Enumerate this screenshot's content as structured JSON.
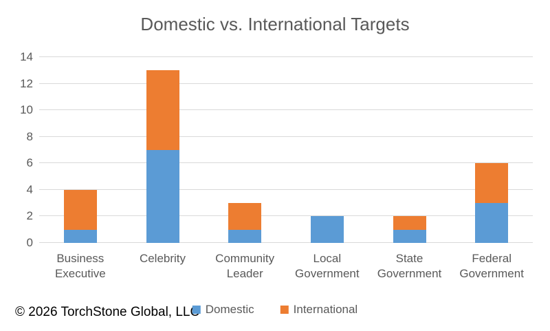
{
  "title": "Domestic vs. International Targets",
  "footer": {
    "copyright": "© 2026 TorchStone Global, LLC"
  },
  "legend": [
    {
      "label": "Domestic",
      "color": "#5B9BD5"
    },
    {
      "label": "International",
      "color": "#ED7D31"
    }
  ],
  "colors": {
    "domestic": "#5B9BD5",
    "international": "#ED7D31",
    "axis_text": "#595959",
    "gridline": "#D9D9D9",
    "footer_text": "#000000"
  },
  "chart_data": {
    "type": "bar",
    "stacked": true,
    "title": "Domestic vs. International Targets",
    "categories": [
      "Business Executive",
      "Celebrity",
      "Community Leader",
      "Local Government",
      "State Government",
      "Federal Government"
    ],
    "series": [
      {
        "name": "Domestic",
        "color": "#5B9BD5",
        "values": [
          1,
          7,
          1,
          2,
          1,
          3
        ]
      },
      {
        "name": "International",
        "color": "#ED7D31",
        "values": [
          3,
          6,
          2,
          0,
          1,
          3
        ]
      }
    ],
    "xlabel": "",
    "ylabel": "",
    "ylim": [
      0,
      14
    ],
    "ytick_step": 2,
    "grid": true,
    "legend_position": "bottom"
  }
}
